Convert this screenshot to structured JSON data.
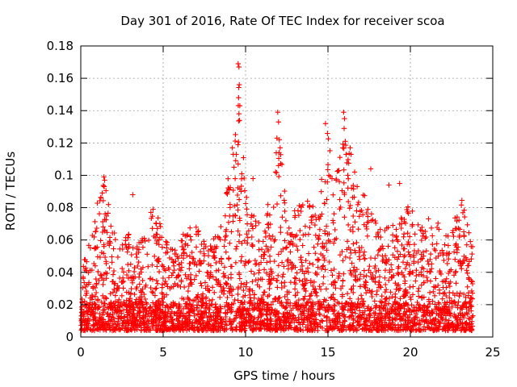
{
  "chart_data": {
    "type": "scatter",
    "title": "Day 301 of 2016, Rate Of TEC Index for receiver scoa",
    "xlabel": "GPS time / hours",
    "ylabel": "ROTI / TECUs",
    "xlim": [
      0,
      25
    ],
    "ylim": [
      0,
      0.18
    ],
    "xticks": [
      0,
      5,
      10,
      15,
      20,
      25
    ],
    "yticks": [
      0,
      0.02,
      0.04,
      0.06,
      0.08,
      0.1,
      0.12,
      0.14,
      0.16,
      0.18
    ],
    "xtick_labels": [
      "0",
      "5",
      "10",
      "15",
      "20",
      "25"
    ],
    "ytick_labels": [
      "0",
      "0.02",
      "0.04",
      "0.06",
      "0.08",
      "0.1",
      "0.12",
      "0.14",
      "0.16",
      "0.18"
    ],
    "grid": true,
    "marker": "+",
    "color": "#ff0000",
    "x_range_of_data": [
      0,
      23.8
    ],
    "envelope": {
      "x": [
        0,
        0.5,
        1.0,
        1.4,
        2.0,
        2.5,
        3.0,
        3.5,
        4.0,
        4.4,
        5.0,
        5.5,
        6.0,
        6.5,
        7.0,
        7.5,
        8.0,
        8.5,
        9.0,
        9.3,
        9.6,
        10.0,
        10.5,
        11.0,
        11.5,
        12.0,
        12.5,
        13.0,
        13.5,
        14.0,
        14.5,
        15.0,
        15.5,
        16.0,
        16.3,
        16.8,
        17.5,
        18.0,
        18.5,
        19.0,
        19.5,
        20.0,
        20.5,
        21.0,
        21.5,
        22.0,
        22.5,
        23.0,
        23.3,
        23.8
      ],
      "y": [
        0.045,
        0.06,
        0.088,
        0.098,
        0.066,
        0.06,
        0.065,
        0.06,
        0.07,
        0.086,
        0.065,
        0.055,
        0.06,
        0.07,
        0.072,
        0.06,
        0.06,
        0.07,
        0.105,
        0.116,
        0.165,
        0.09,
        0.075,
        0.07,
        0.09,
        0.138,
        0.075,
        0.08,
        0.088,
        0.085,
        0.09,
        0.13,
        0.1,
        0.138,
        0.116,
        0.1,
        0.082,
        0.07,
        0.07,
        0.08,
        0.075,
        0.088,
        0.07,
        0.075,
        0.072,
        0.07,
        0.065,
        0.088,
        0.08,
        0.055
      ]
    },
    "noise_floor": 0.004,
    "outliers": [
      {
        "x": 9.55,
        "y": 0.169
      },
      {
        "x": 9.6,
        "y": 0.167
      },
      {
        "x": 9.62,
        "y": 0.156
      },
      {
        "x": 9.58,
        "y": 0.148
      },
      {
        "x": 9.65,
        "y": 0.143
      },
      {
        "x": 9.6,
        "y": 0.138
      },
      {
        "x": 9.63,
        "y": 0.134
      },
      {
        "x": 9.2,
        "y": 0.117
      },
      {
        "x": 9.25,
        "y": 0.113
      },
      {
        "x": 9.3,
        "y": 0.105
      },
      {
        "x": 9.55,
        "y": 0.107
      },
      {
        "x": 11.95,
        "y": 0.139
      },
      {
        "x": 12.0,
        "y": 0.133
      },
      {
        "x": 11.9,
        "y": 0.123
      },
      {
        "x": 12.05,
        "y": 0.122
      },
      {
        "x": 12.1,
        "y": 0.117
      },
      {
        "x": 12.0,
        "y": 0.106
      },
      {
        "x": 14.85,
        "y": 0.132
      },
      {
        "x": 15.95,
        "y": 0.139
      },
      {
        "x": 16.0,
        "y": 0.135
      },
      {
        "x": 15.98,
        "y": 0.129
      },
      {
        "x": 16.05,
        "y": 0.121
      },
      {
        "x": 15.9,
        "y": 0.117
      },
      {
        "x": 16.1,
        "y": 0.113
      },
      {
        "x": 16.35,
        "y": 0.117
      },
      {
        "x": 16.4,
        "y": 0.113
      },
      {
        "x": 1.4,
        "y": 0.099
      },
      {
        "x": 1.45,
        "y": 0.097
      },
      {
        "x": 1.42,
        "y": 0.093
      },
      {
        "x": 3.15,
        "y": 0.088
      },
      {
        "x": 10.45,
        "y": 0.098
      },
      {
        "x": 17.6,
        "y": 0.104
      },
      {
        "x": 18.7,
        "y": 0.094
      },
      {
        "x": 19.35,
        "y": 0.095
      },
      {
        "x": 15.05,
        "y": 0.1
      },
      {
        "x": 16.2,
        "y": 0.1
      }
    ]
  }
}
